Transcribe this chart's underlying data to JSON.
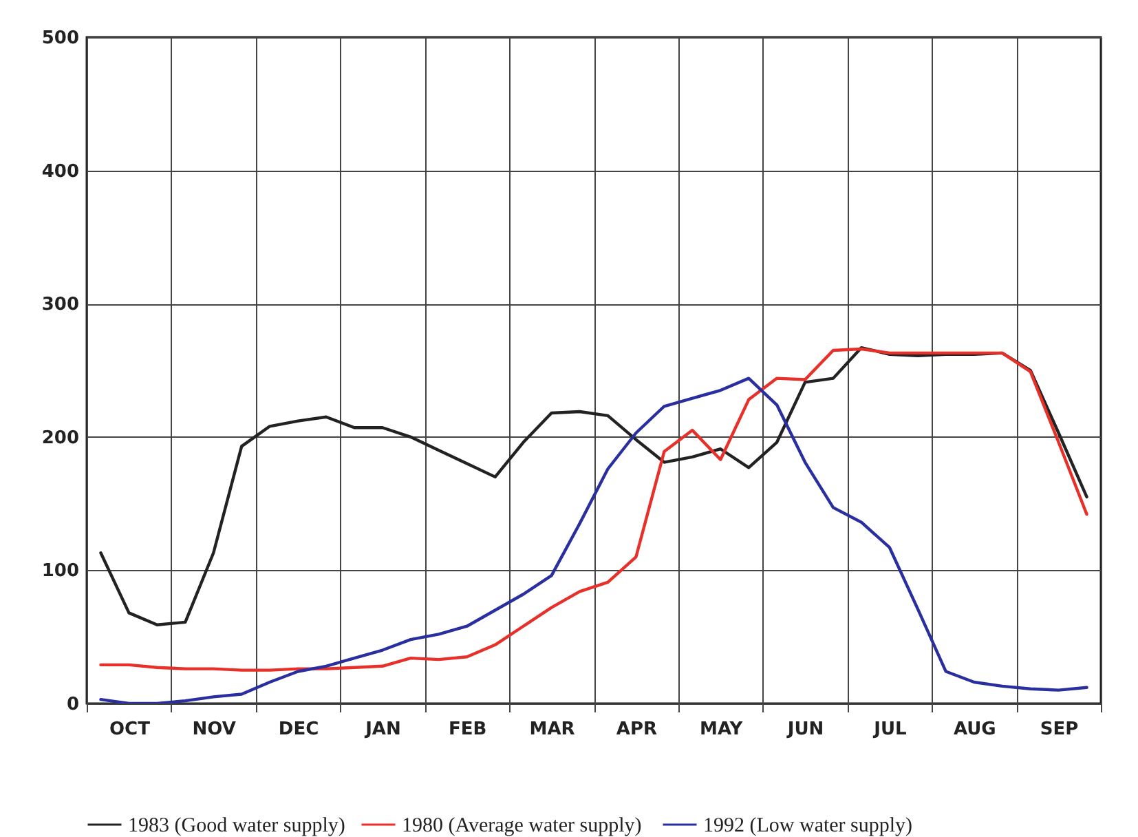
{
  "chart_data": {
    "type": "line",
    "categories": [
      null,
      "OCT",
      null,
      null,
      "NOV",
      null,
      null,
      "DEC",
      null,
      null,
      "JAN",
      null,
      null,
      "FEB",
      null,
      null,
      "MAR",
      null,
      null,
      "APR",
      null,
      null,
      "MAY",
      null,
      null,
      "JUN",
      null,
      null,
      "JUL",
      null,
      null,
      "AUG",
      null,
      null,
      "SEP",
      null
    ],
    "ylim": [
      0,
      500
    ],
    "yticks": [
      0,
      100,
      200,
      300,
      400,
      500
    ],
    "grid": true,
    "legend": "bottom",
    "series": [
      {
        "name": "1983 (Good water supply)",
        "color": "#222222",
        "values": [
          113,
          68,
          59,
          61,
          113,
          193,
          208,
          212,
          215,
          207,
          207,
          200,
          190,
          180,
          170,
          196,
          218,
          219,
          216,
          198,
          181,
          185,
          191,
          177,
          196,
          241,
          244,
          267,
          262,
          261,
          262,
          262,
          263,
          250,
          203,
          155
        ]
      },
      {
        "name": "1980  (Average water supply)",
        "color": "#e8302a",
        "values": [
          29,
          29,
          27,
          26,
          26,
          25,
          25,
          26,
          26,
          27,
          28,
          34,
          33,
          35,
          44,
          58,
          72,
          84,
          91,
          110,
          189,
          205,
          183,
          228,
          244,
          243,
          265,
          266,
          263,
          263,
          263,
          263,
          263,
          249,
          196,
          142
        ]
      },
      {
        "name": "1992 (Low water supply)",
        "color": "#2a2fa0",
        "values": [
          3,
          0,
          0,
          2,
          5,
          7,
          16,
          24,
          28,
          34,
          40,
          48,
          52,
          58,
          70,
          82,
          96,
          135,
          176,
          203,
          223,
          229,
          235,
          244,
          224,
          181,
          147,
          136,
          117,
          71,
          24,
          16,
          13,
          11,
          10,
          12
        ]
      }
    ]
  }
}
